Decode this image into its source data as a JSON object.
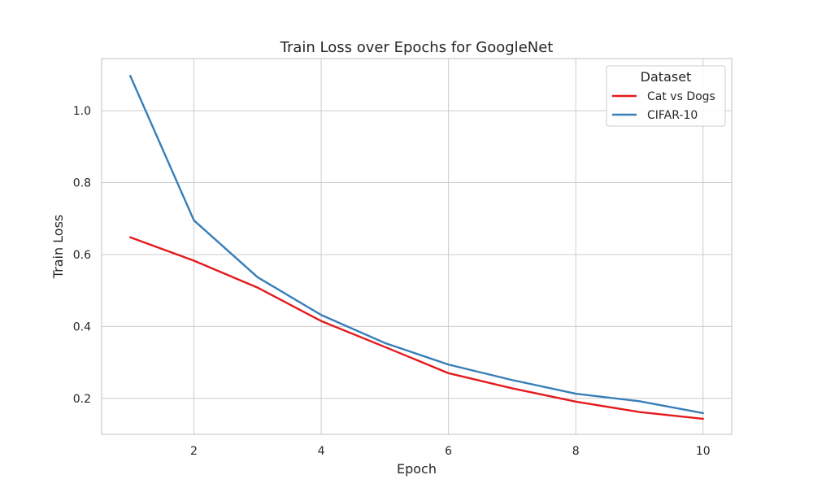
{
  "chart_data": {
    "type": "line",
    "title": "Train Loss over Epochs for GoogleNet",
    "xlabel": "Epoch",
    "ylabel": "Train Loss",
    "xlim": [
      0.55,
      10.45
    ],
    "ylim": [
      0.1,
      1.145
    ],
    "x_ticks": [
      2,
      4,
      6,
      8,
      10
    ],
    "x_tick_labels": [
      "2",
      "4",
      "6",
      "8",
      "10"
    ],
    "y_ticks": [
      0.2,
      0.4,
      0.6,
      0.8,
      1.0
    ],
    "y_tick_labels": [
      "0.2",
      "0.4",
      "0.6",
      "0.8",
      "1.0"
    ],
    "grid": true,
    "legend": {
      "title": "Dataset",
      "placement": "top-right"
    },
    "x": [
      1,
      2,
      3,
      4,
      5,
      6,
      7,
      8,
      9,
      10
    ],
    "series": [
      {
        "name": "Cat vs Dogs",
        "color": "#e41a1c",
        "values": [
          0.648,
          0.583,
          0.508,
          0.415,
          0.343,
          0.27,
          0.228,
          0.191,
          0.162,
          0.143
        ]
      },
      {
        "name": "CIFAR-10",
        "color": "#377eb8",
        "values": [
          1.097,
          0.695,
          0.537,
          0.432,
          0.354,
          0.294,
          0.251,
          0.213,
          0.192,
          0.159
        ]
      }
    ]
  }
}
